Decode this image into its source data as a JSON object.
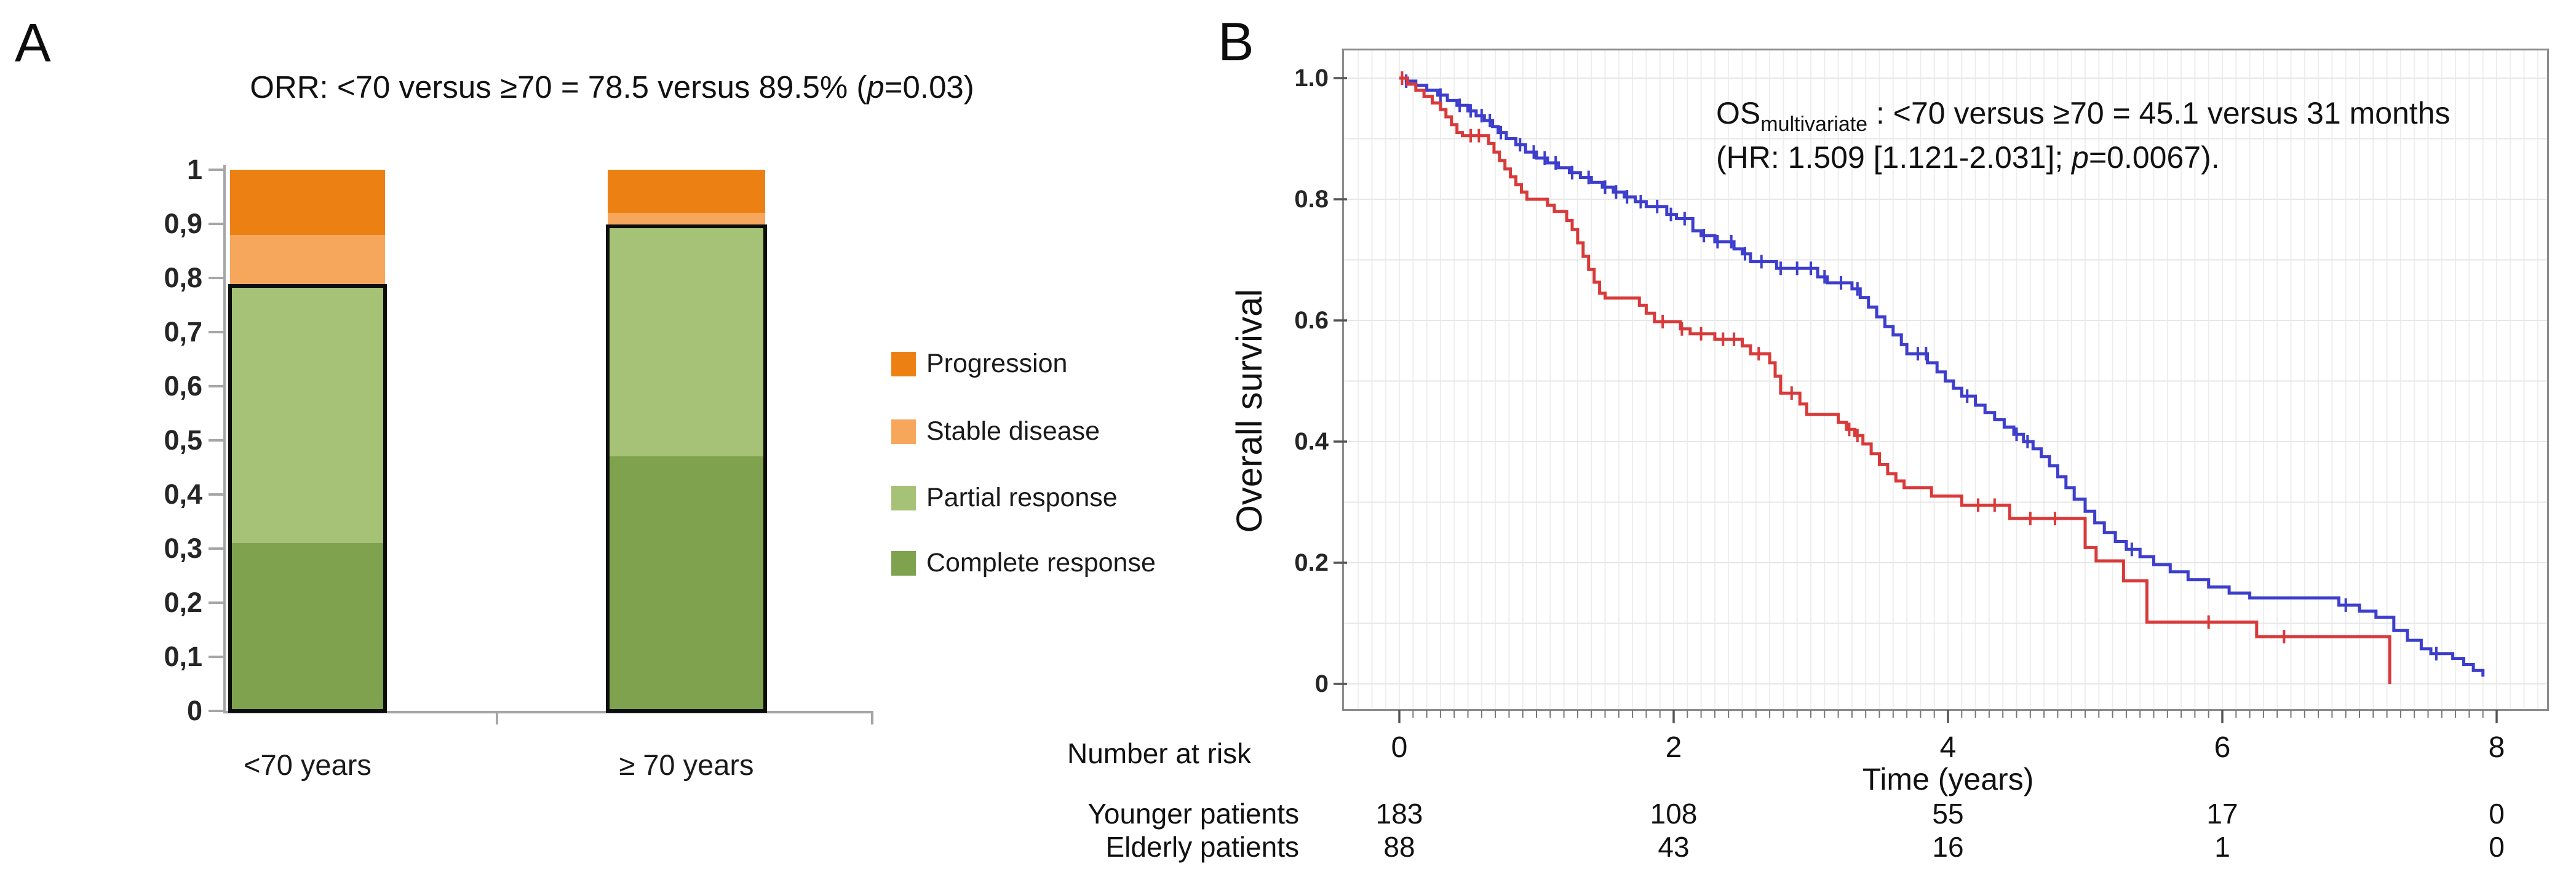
{
  "panel_a": {
    "label": "A",
    "title_pre": "ORR: <70 versus ≥70 = 78.5 versus 89.5% (",
    "title_p": "p",
    "title_post": "=0.03)"
  },
  "panel_b": {
    "label": "B",
    "annotation": {
      "os": "OS",
      "os_sub": "multivariate",
      "line1_rest": " : <70 versus ≥70 = 45.1 versus 31 months",
      "line2_pre": "(HR: 1.509 [1.121-2.031]; ",
      "line2_p": "p",
      "line2_post": "=0.0067)."
    }
  },
  "chart_data": [
    {
      "type": "bar",
      "stacked": true,
      "title": "ORR: <70 versus ≥70 = 78.5 versus 89.5% (p=0.03)",
      "categories": [
        "<70 years",
        "≥ 70 years"
      ],
      "series": [
        {
          "name": "Complete response",
          "color": "#7fa24e",
          "values": [
            0.31,
            0.47
          ]
        },
        {
          "name": "Partial response",
          "color": "#a6c276",
          "values": [
            0.475,
            0.425
          ]
        },
        {
          "name": "Stable disease",
          "color": "#f6a75c",
          "values": [
            0.095,
            0.025
          ]
        },
        {
          "name": "Progression",
          "color": "#ed8013",
          "values": [
            0.12,
            0.08
          ]
        }
      ],
      "orr_box_values": [
        0.785,
        0.895
      ],
      "xlabel": "",
      "ylabel": "",
      "ylim": [
        0,
        1
      ],
      "y_ticks_bottom_up": [
        "0",
        "0,1",
        "0,2",
        "0,3",
        "0,4",
        "0,5",
        "0,6",
        "0,7",
        "0,8",
        "0,9",
        "1"
      ],
      "grid": false,
      "legend_position": "right",
      "legend_order": [
        "Progression",
        "Stable disease",
        "Partial response",
        "Complete response"
      ],
      "axis_color": "#a6a6a6",
      "outline_color": "#0d0d0d"
    },
    {
      "type": "line",
      "subtype": "kaplan-meier-step",
      "xlabel": "Time (years)",
      "ylabel": "Overall survival",
      "xlim": [
        0,
        8
      ],
      "ylim": [
        0,
        1.0
      ],
      "x_ticks": [
        0,
        2,
        4,
        6,
        8
      ],
      "y_ticks": [
        "1.0",
        "0.8",
        "0.6",
        "0.4",
        "0.2",
        "0"
      ],
      "y_tick_values": [
        1.0,
        0.8,
        0.6,
        0.4,
        0.2,
        0
      ],
      "grid": true,
      "minor_grid_step_x_years": 0.1,
      "minor_grid_step_y": 0.1,
      "frame_color": "#8c8c8c",
      "grid_color": "#e7e7e7",
      "annotation_lines": [
        "OSmultivariate : <70 versus ≥70 = 45.1 versus 31 months",
        "(HR: 1.509 [1.121-2.031]; p=0.0067)."
      ],
      "series": [
        {
          "name": "Younger patients",
          "age_group": "<70",
          "median_months": 45.1,
          "color": "#3d3ecc",
          "steps": [
            [
              0,
              1.0
            ],
            [
              0.05,
              0.995
            ],
            [
              0.12,
              0.988
            ],
            [
              0.2,
              0.98
            ],
            [
              0.28,
              0.972
            ],
            [
              0.35,
              0.963
            ],
            [
              0.42,
              0.955
            ],
            [
              0.5,
              0.946
            ],
            [
              0.56,
              0.938
            ],
            [
              0.62,
              0.93
            ],
            [
              0.68,
              0.92
            ],
            [
              0.72,
              0.91
            ],
            [
              0.78,
              0.9
            ],
            [
              0.85,
              0.89
            ],
            [
              0.92,
              0.878
            ],
            [
              1.0,
              0.868
            ],
            [
              1.08,
              0.86
            ],
            [
              1.16,
              0.852
            ],
            [
              1.24,
              0.844
            ],
            [
              1.32,
              0.836
            ],
            [
              1.4,
              0.828
            ],
            [
              1.48,
              0.82
            ],
            [
              1.56,
              0.812
            ],
            [
              1.64,
              0.804
            ],
            [
              1.72,
              0.796
            ],
            [
              1.8,
              0.788
            ],
            [
              1.95,
              0.775
            ],
            [
              2.02,
              0.768
            ],
            [
              2.14,
              0.748
            ],
            [
              2.2,
              0.74
            ],
            [
              2.3,
              0.73
            ],
            [
              2.44,
              0.718
            ],
            [
              2.5,
              0.71
            ],
            [
              2.56,
              0.697
            ],
            [
              2.75,
              0.686
            ],
            [
              3.05,
              0.672
            ],
            [
              3.12,
              0.662
            ],
            [
              3.3,
              0.652
            ],
            [
              3.36,
              0.638
            ],
            [
              3.42,
              0.622
            ],
            [
              3.48,
              0.606
            ],
            [
              3.54,
              0.59
            ],
            [
              3.6,
              0.576
            ],
            [
              3.66,
              0.56
            ],
            [
              3.7,
              0.545
            ],
            [
              3.85,
              0.53
            ],
            [
              3.92,
              0.515
            ],
            [
              3.98,
              0.5
            ],
            [
              4.04,
              0.488
            ],
            [
              4.1,
              0.475
            ],
            [
              4.2,
              0.46
            ],
            [
              4.27,
              0.448
            ],
            [
              4.34,
              0.436
            ],
            [
              4.41,
              0.424
            ],
            [
              4.48,
              0.412
            ],
            [
              4.55,
              0.4
            ],
            [
              4.62,
              0.388
            ],
            [
              4.68,
              0.375
            ],
            [
              4.74,
              0.36
            ],
            [
              4.8,
              0.342
            ],
            [
              4.86,
              0.324
            ],
            [
              4.92,
              0.305
            ],
            [
              5.0,
              0.285
            ],
            [
              5.07,
              0.266
            ],
            [
              5.14,
              0.25
            ],
            [
              5.22,
              0.235
            ],
            [
              5.3,
              0.222
            ],
            [
              5.4,
              0.21
            ],
            [
              5.5,
              0.197
            ],
            [
              5.62,
              0.185
            ],
            [
              5.75,
              0.172
            ],
            [
              5.9,
              0.16
            ],
            [
              6.05,
              0.15
            ],
            [
              6.2,
              0.142
            ],
            [
              6.85,
              0.13
            ],
            [
              7.0,
              0.12
            ],
            [
              7.12,
              0.11
            ],
            [
              7.25,
              0.088
            ],
            [
              7.35,
              0.072
            ],
            [
              7.45,
              0.058
            ],
            [
              7.52,
              0.05
            ],
            [
              7.68,
              0.042
            ],
            [
              7.76,
              0.032
            ],
            [
              7.83,
              0.022
            ],
            [
              7.9,
              0.012
            ]
          ],
          "censor_times": [
            0.05,
            0.3,
            0.44,
            0.52,
            0.6,
            0.66,
            0.74,
            0.88,
            0.98,
            1.06,
            1.14,
            1.26,
            1.38,
            1.5,
            1.58,
            1.66,
            1.76,
            1.88,
            1.98,
            2.08,
            2.22,
            2.32,
            2.42,
            2.52,
            2.64,
            2.78,
            2.9,
            3.0,
            3.1,
            3.22,
            3.34,
            3.78,
            3.84,
            4.14,
            4.5,
            4.58,
            5.34,
            6.9,
            7.56
          ]
        },
        {
          "name": "Elderly patients",
          "age_group": "≥70",
          "median_months": 31,
          "color": "#d83a3a",
          "steps": [
            [
              0,
              1.0
            ],
            [
              0.06,
              0.99
            ],
            [
              0.12,
              0.98
            ],
            [
              0.18,
              0.97
            ],
            [
              0.24,
              0.959
            ],
            [
              0.3,
              0.948
            ],
            [
              0.34,
              0.936
            ],
            [
              0.38,
              0.923
            ],
            [
              0.42,
              0.91
            ],
            [
              0.46,
              0.905
            ],
            [
              0.65,
              0.892
            ],
            [
              0.69,
              0.878
            ],
            [
              0.73,
              0.864
            ],
            [
              0.77,
              0.85
            ],
            [
              0.81,
              0.837
            ],
            [
              0.85,
              0.824
            ],
            [
              0.89,
              0.812
            ],
            [
              0.93,
              0.8
            ],
            [
              1.08,
              0.79
            ],
            [
              1.13,
              0.78
            ],
            [
              1.22,
              0.765
            ],
            [
              1.26,
              0.75
            ],
            [
              1.3,
              0.728
            ],
            [
              1.34,
              0.706
            ],
            [
              1.38,
              0.684
            ],
            [
              1.42,
              0.663
            ],
            [
              1.46,
              0.645
            ],
            [
              1.5,
              0.637
            ],
            [
              1.75,
              0.625
            ],
            [
              1.8,
              0.612
            ],
            [
              1.86,
              0.598
            ],
            [
              2.05,
              0.586
            ],
            [
              2.12,
              0.578
            ],
            [
              2.3,
              0.569
            ],
            [
              2.5,
              0.558
            ],
            [
              2.56,
              0.545
            ],
            [
              2.7,
              0.53
            ],
            [
              2.74,
              0.508
            ],
            [
              2.78,
              0.48
            ],
            [
              2.92,
              0.462
            ],
            [
              2.97,
              0.445
            ],
            [
              3.2,
              0.432
            ],
            [
              3.26,
              0.42
            ],
            [
              3.32,
              0.41
            ],
            [
              3.38,
              0.396
            ],
            [
              3.44,
              0.38
            ],
            [
              3.5,
              0.362
            ],
            [
              3.56,
              0.347
            ],
            [
              3.62,
              0.335
            ],
            [
              3.68,
              0.324
            ],
            [
              3.88,
              0.31
            ],
            [
              4.1,
              0.295
            ],
            [
              4.45,
              0.273
            ],
            [
              5.0,
              0.225
            ],
            [
              5.08,
              0.203
            ],
            [
              5.28,
              0.17
            ],
            [
              5.45,
              0.102
            ],
            [
              6.25,
              0.078
            ],
            [
              7.22,
              0.0
            ]
          ],
          "censor_times": [
            0.02,
            0.52,
            0.58,
            1.92,
            2.06,
            2.2,
            2.36,
            2.44,
            2.62,
            2.86,
            3.28,
            3.34,
            4.22,
            4.34,
            4.6,
            4.78,
            5.9,
            6.45
          ]
        }
      ],
      "number_at_risk": {
        "header": "Number at risk",
        "times": [
          0,
          2,
          4,
          6,
          8
        ],
        "rows": [
          {
            "label": "Younger patients",
            "values": [
              183,
              108,
              55,
              17,
              0
            ]
          },
          {
            "label": "Elderly patients",
            "values": [
              88,
              43,
              16,
              1,
              0
            ]
          }
        ]
      }
    }
  ]
}
